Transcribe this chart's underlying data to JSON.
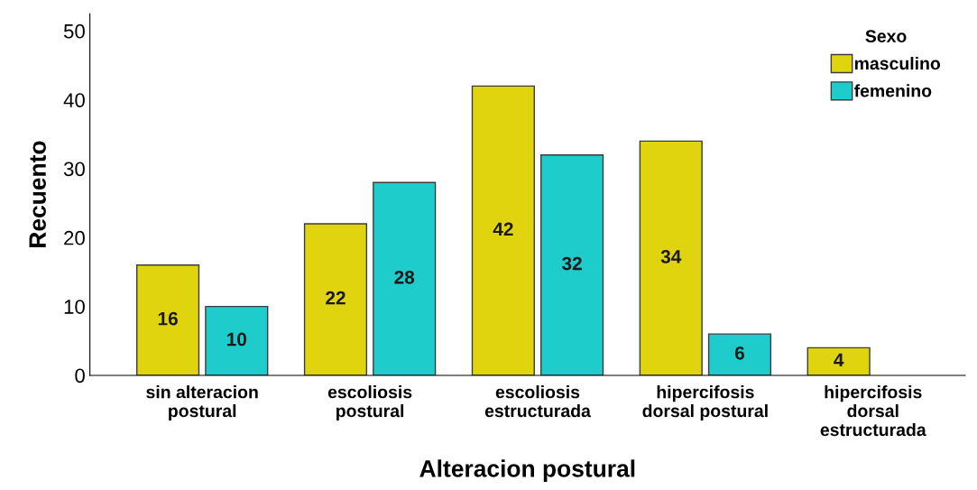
{
  "chart_data": {
    "type": "bar",
    "xlabel": "Alteracion postural",
    "ylabel": "Recuento",
    "legend_title": "Sexo",
    "categories": [
      "sin alteracion\npostural",
      "escoliosis\npostural",
      "escoliosis\nestructurada",
      "hipercifosis\ndorsal postural",
      "hipercifosis\ndorsal\nestructurada"
    ],
    "series": [
      {
        "name": "masculino",
        "color": "#e0d40e",
        "values": [
          16,
          22,
          42,
          34,
          4
        ]
      },
      {
        "name": "femenino",
        "color": "#1fcccc",
        "values": [
          10,
          28,
          32,
          6,
          null
        ]
      }
    ],
    "ylim": [
      0,
      52.5
    ],
    "yticks": [
      0,
      10,
      20,
      30,
      40,
      50
    ],
    "grid": false,
    "legend": "top right",
    "data_labels": true
  }
}
